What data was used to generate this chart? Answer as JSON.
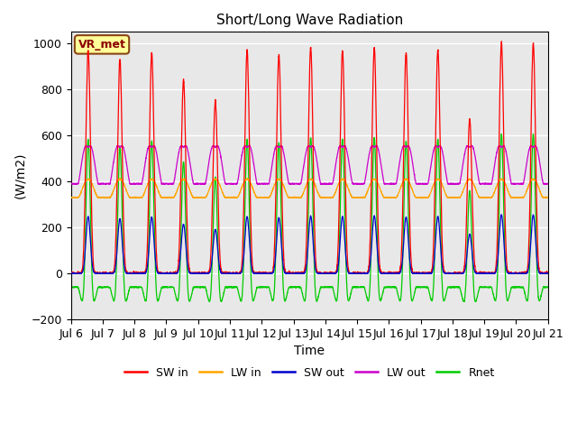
{
  "title": "Short/Long Wave Radiation",
  "xlabel": "Time",
  "ylabel": "(W/m2)",
  "ylim": [
    -200,
    1050
  ],
  "annotation": "VR_met",
  "background_color": "#e8e8e8",
  "grid_color": "white",
  "series_colors": {
    "SW_in": "#ff0000",
    "LW_in": "#ffa500",
    "SW_out": "#0000cc",
    "LW_out": "#cc00cc",
    "Rnet": "#00cc00"
  },
  "legend_labels": [
    "SW in",
    "LW in",
    "SW out",
    "LW out",
    "Rnet"
  ],
  "x_tick_labels": [
    "Jul 6",
    "Jul 7",
    "Jul 8",
    "Jul 9",
    "Jul 10",
    "Jul 11",
    "Jul 12",
    "Jul 13",
    "Jul 14",
    "Jul 15",
    "Jul 16",
    "Jul 17",
    "Jul 18",
    "Jul 19",
    "Jul 20",
    "Jul 21"
  ],
  "n_days": 15,
  "points_per_day": 288
}
